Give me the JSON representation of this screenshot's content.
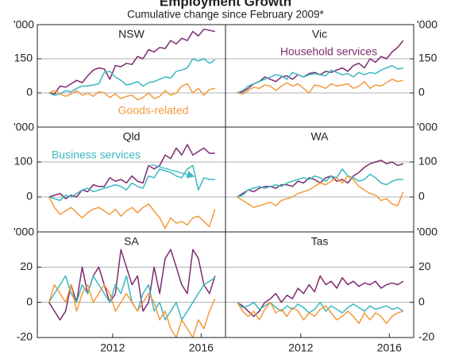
{
  "header": {
    "title": "Employment Growth",
    "subtitle": "Cumulative change since February 2009*"
  },
  "chart_data": [
    {
      "type": "line",
      "title": "NSW",
      "y_unit": "'000",
      "x": [
        2009.125,
        2009.375,
        2009.625,
        2009.875,
        2010.125,
        2010.375,
        2010.625,
        2010.875,
        2011.125,
        2011.375,
        2011.625,
        2011.875,
        2012.125,
        2012.375,
        2012.625,
        2012.875,
        2013.125,
        2013.375,
        2013.625,
        2013.875,
        2014.125,
        2014.375,
        2014.625,
        2014.875,
        2015.125,
        2015.375,
        2015.625,
        2015.875,
        2016.125,
        2016.375,
        2016.625
      ],
      "xlim": [
        2008.6,
        2017.1
      ],
      "ylim": [
        -150,
        300
      ],
      "yticks": [
        0,
        150
      ],
      "series": [
        {
          "color": "#7d2b6f",
          "values": [
            0,
            -5,
            30,
            25,
            40,
            55,
            45,
            75,
            100,
            110,
            105,
            60,
            120,
            115,
            130,
            125,
            160,
            150,
            190,
            180,
            200,
            195,
            230,
            215,
            240,
            230,
            270,
            250,
            280,
            275,
            270
          ]
        },
        {
          "color": "#3bb8c1",
          "values": [
            0,
            -10,
            -5,
            10,
            5,
            20,
            30,
            30,
            35,
            40,
            90,
            95,
            70,
            55,
            35,
            40,
            50,
            30,
            45,
            50,
            60,
            70,
            65,
            95,
            100,
            110,
            150,
            140,
            150,
            130,
            145
          ]
        },
        {
          "name": "Goods-related",
          "color": "#f39a3c",
          "values": [
            0,
            10,
            -5,
            -15,
            -5,
            10,
            -10,
            0,
            -15,
            5,
            0,
            -20,
            -5,
            -25,
            -15,
            -10,
            -30,
            -20,
            0,
            -25,
            -15,
            10,
            -10,
            0,
            30,
            40,
            0,
            20,
            -10,
            15,
            20
          ]
        }
      ]
    },
    {
      "type": "line",
      "title": "Vic",
      "y_unit": "'000",
      "x": [
        2009.125,
        2009.375,
        2009.625,
        2009.875,
        2010.125,
        2010.375,
        2010.625,
        2010.875,
        2011.125,
        2011.375,
        2011.625,
        2011.875,
        2012.125,
        2012.375,
        2012.625,
        2012.875,
        2013.125,
        2013.375,
        2013.625,
        2013.875,
        2014.125,
        2014.375,
        2014.625,
        2014.875,
        2015.125,
        2015.375,
        2015.625,
        2015.875,
        2016.125,
        2016.375,
        2016.625
      ],
      "xlim": [
        2008.6,
        2017.1
      ],
      "ylim": [
        -150,
        300
      ],
      "yticks": [
        0,
        150
      ],
      "series": [
        {
          "name": "Household services",
          "color": "#7d2b6f",
          "values": [
            0,
            5,
            20,
            40,
            50,
            70,
            60,
            50,
            70,
            75,
            60,
            80,
            70,
            85,
            90,
            80,
            95,
            90,
            100,
            110,
            95,
            120,
            130,
            110,
            150,
            135,
            160,
            150,
            180,
            200,
            230
          ]
        },
        {
          "color": "#3bb8c1",
          "values": [
            0,
            10,
            30,
            40,
            50,
            60,
            70,
            80,
            75,
            60,
            90,
            80,
            70,
            80,
            85,
            80,
            75,
            100,
            90,
            80,
            85,
            70,
            90,
            80,
            90,
            85,
            100,
            110,
            120,
            105,
            110
          ]
        },
        {
          "color": "#f39a3c",
          "values": [
            0,
            -5,
            10,
            25,
            20,
            35,
            30,
            10,
            30,
            45,
            30,
            40,
            20,
            0,
            35,
            30,
            20,
            40,
            30,
            35,
            40,
            20,
            30,
            50,
            20,
            35,
            30,
            45,
            60,
            50,
            55
          ]
        }
      ]
    },
    {
      "type": "line",
      "title": "Qld",
      "y_unit": "'000",
      "x": [
        2009.125,
        2009.375,
        2009.625,
        2009.875,
        2010.125,
        2010.375,
        2010.625,
        2010.875,
        2011.125,
        2011.375,
        2011.625,
        2011.875,
        2012.125,
        2012.375,
        2012.625,
        2012.875,
        2013.125,
        2013.375,
        2013.625,
        2013.875,
        2014.125,
        2014.375,
        2014.625,
        2014.875,
        2015.125,
        2015.375,
        2015.625,
        2015.875,
        2016.125,
        2016.375,
        2016.625
      ],
      "xlim": [
        2008.6,
        2017.1
      ],
      "ylim": [
        -100,
        200
      ],
      "yticks": [
        0,
        100
      ],
      "series": [
        {
          "color": "#7d2b6f",
          "values": [
            0,
            5,
            10,
            -5,
            5,
            0,
            20,
            15,
            35,
            30,
            30,
            55,
            45,
            50,
            40,
            60,
            45,
            40,
            90,
            80,
            90,
            120,
            110,
            140,
            120,
            150,
            120,
            130,
            140,
            125,
            125
          ]
        },
        {
          "name": "Business services",
          "color": "#3bb8c1",
          "values": [
            0,
            -5,
            -10,
            5,
            0,
            10,
            20,
            25,
            15,
            20,
            25,
            30,
            35,
            30,
            20,
            40,
            30,
            25,
            60,
            55,
            80,
            75,
            70,
            60,
            55,
            80,
            90,
            20,
            55,
            50,
            50
          ]
        },
        {
          "color": "#f39a3c",
          "values": [
            0,
            -30,
            -50,
            -40,
            -30,
            -45,
            -60,
            -45,
            -35,
            -30,
            -40,
            -50,
            -35,
            -55,
            -40,
            -30,
            -45,
            -30,
            -20,
            -40,
            -60,
            -90,
            -60,
            -75,
            -70,
            -80,
            -60,
            -55,
            -70,
            -85,
            -35
          ]
        }
      ]
    },
    {
      "type": "line",
      "title": "WA",
      "y_unit": "'000",
      "x": [
        2009.125,
        2009.375,
        2009.625,
        2009.875,
        2010.125,
        2010.375,
        2010.625,
        2010.875,
        2011.125,
        2011.375,
        2011.625,
        2011.875,
        2012.125,
        2012.375,
        2012.625,
        2012.875,
        2013.125,
        2013.375,
        2013.625,
        2013.875,
        2014.125,
        2014.375,
        2014.625,
        2014.875,
        2015.125,
        2015.375,
        2015.625,
        2015.875,
        2016.125,
        2016.375,
        2016.625
      ],
      "xlim": [
        2008.6,
        2017.1
      ],
      "ylim": [
        -100,
        200
      ],
      "yticks": [
        0,
        100
      ],
      "series": [
        {
          "color": "#7d2b6f",
          "values": [
            0,
            10,
            20,
            15,
            25,
            30,
            30,
            25,
            35,
            35,
            30,
            45,
            40,
            55,
            50,
            40,
            55,
            60,
            45,
            50,
            40,
            60,
            70,
            85,
            95,
            100,
            105,
            95,
            100,
            90,
            95
          ]
        },
        {
          "color": "#3bb8c1",
          "values": [
            0,
            5,
            20,
            25,
            30,
            25,
            30,
            35,
            30,
            40,
            45,
            50,
            55,
            50,
            60,
            55,
            45,
            60,
            55,
            80,
            60,
            55,
            45,
            50,
            65,
            55,
            40,
            35,
            45,
            50,
            50
          ]
        },
        {
          "color": "#f39a3c",
          "values": [
            0,
            -10,
            -20,
            -30,
            -25,
            -20,
            -15,
            -25,
            -10,
            -5,
            0,
            10,
            15,
            20,
            30,
            40,
            35,
            45,
            55,
            40,
            60,
            50,
            30,
            20,
            10,
            5,
            -10,
            -5,
            -20,
            -25,
            15
          ]
        }
      ]
    },
    {
      "type": "line",
      "title": "SA",
      "y_unit": "'000",
      "x": [
        2009.125,
        2009.375,
        2009.625,
        2009.875,
        2010.125,
        2010.375,
        2010.625,
        2010.875,
        2011.125,
        2011.375,
        2011.625,
        2011.875,
        2012.125,
        2012.375,
        2012.625,
        2012.875,
        2013.125,
        2013.375,
        2013.625,
        2013.875,
        2014.125,
        2014.375,
        2014.625,
        2014.875,
        2015.125,
        2015.375,
        2015.625,
        2015.875,
        2016.125,
        2016.375,
        2016.625
      ],
      "xlim": [
        2008.6,
        2017.1
      ],
      "xticks": [
        2012,
        2016
      ],
      "ylim": [
        -20,
        40
      ],
      "yticks": [
        -20,
        0,
        20
      ],
      "series": [
        {
          "color": "#7d2b6f",
          "values": [
            0,
            -5,
            -10,
            -5,
            10,
            0,
            20,
            5,
            15,
            20,
            10,
            0,
            5,
            30,
            20,
            10,
            15,
            -5,
            0,
            20,
            5,
            25,
            30,
            20,
            10,
            5,
            30,
            25,
            10,
            5,
            15
          ]
        },
        {
          "color": "#3bb8c1",
          "values": [
            0,
            5,
            10,
            15,
            5,
            0,
            10,
            5,
            15,
            10,
            5,
            0,
            10,
            5,
            15,
            0,
            -5,
            5,
            10,
            -5,
            0,
            -10,
            -5,
            0,
            -10,
            -5,
            0,
            5,
            10,
            12,
            14
          ]
        },
        {
          "color": "#f39a3c",
          "values": [
            0,
            10,
            5,
            0,
            10,
            -5,
            5,
            10,
            0,
            5,
            10,
            5,
            -5,
            0,
            5,
            0,
            -5,
            0,
            5,
            0,
            -10,
            -5,
            -15,
            -20,
            -10,
            -15,
            -20,
            -10,
            -15,
            -5,
            2
          ]
        }
      ]
    },
    {
      "type": "line",
      "title": "Tas",
      "y_unit": "'000",
      "x": [
        2009.125,
        2009.375,
        2009.625,
        2009.875,
        2010.125,
        2010.375,
        2010.625,
        2010.875,
        2011.125,
        2011.375,
        2011.625,
        2011.875,
        2012.125,
        2012.375,
        2012.625,
        2012.875,
        2013.125,
        2013.375,
        2013.625,
        2013.875,
        2014.125,
        2014.375,
        2014.625,
        2014.875,
        2015.125,
        2015.375,
        2015.625,
        2015.875,
        2016.125,
        2016.375,
        2016.625
      ],
      "xlim": [
        2008.6,
        2017.1
      ],
      "xticks": [
        2012,
        2016
      ],
      "ylim": [
        -20,
        40
      ],
      "yticks": [
        -20,
        0,
        20
      ],
      "series": [
        {
          "color": "#7d2b6f",
          "values": [
            0,
            -2,
            -5,
            -8,
            -5,
            0,
            2,
            5,
            0,
            4,
            2,
            8,
            5,
            10,
            6,
            15,
            10,
            12,
            8,
            14,
            10,
            12,
            9,
            11,
            10,
            12,
            8,
            10,
            11,
            10,
            12
          ]
        },
        {
          "color": "#3bb8c1",
          "values": [
            0,
            -3,
            -2,
            0,
            -4,
            -2,
            0,
            -3,
            -5,
            -2,
            -4,
            -1,
            -3,
            -6,
            -4,
            0,
            -5,
            -2,
            -4,
            -6,
            -3,
            -1,
            -3,
            -5,
            -2,
            -4,
            -3,
            -2,
            -4,
            -3,
            -5
          ]
        },
        {
          "color": "#f39a3c",
          "values": [
            0,
            -5,
            -8,
            -5,
            -10,
            -4,
            0,
            -6,
            -4,
            -8,
            -3,
            -5,
            -10,
            -6,
            -8,
            -4,
            -2,
            -6,
            -10,
            -8,
            -5,
            -8,
            -12,
            -6,
            -10,
            -6,
            -8,
            -12,
            -8,
            -6,
            -5
          ]
        }
      ]
    }
  ]
}
